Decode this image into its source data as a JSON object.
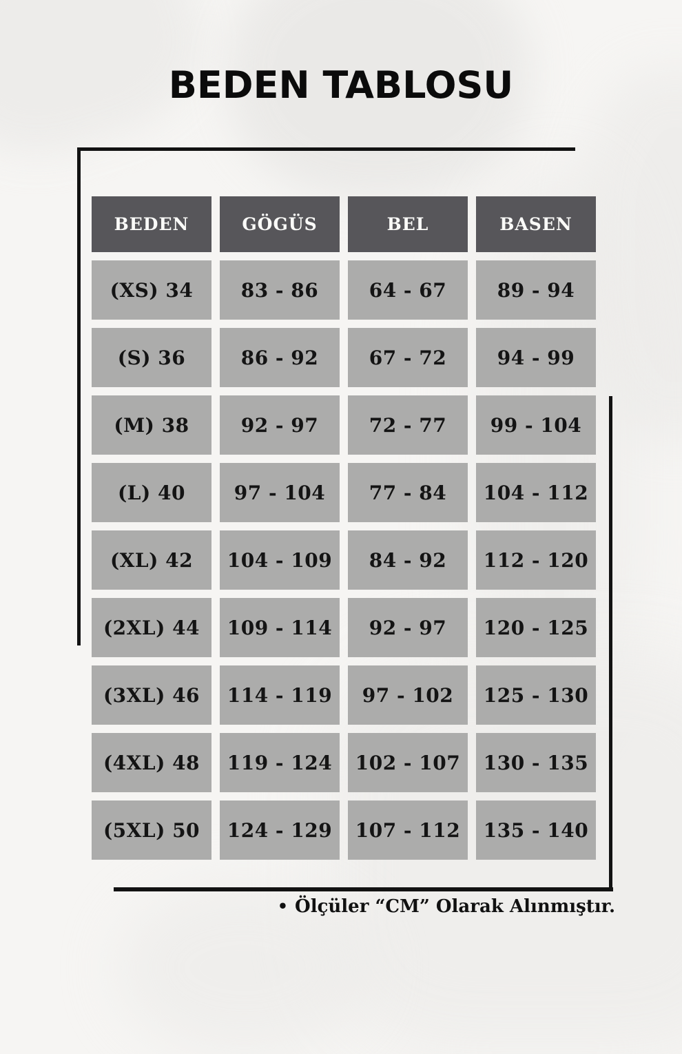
{
  "page": {
    "title": "BEDEN TABLOSU"
  },
  "chart_data": {
    "type": "table",
    "title": "BEDEN TABLOSU",
    "columns": [
      "BEDEN",
      "GÖGÜS",
      "BEL",
      "BASEN"
    ],
    "rows": [
      [
        "(XS) 34",
        "83 - 86",
        "64 - 67",
        "89 - 94"
      ],
      [
        "(S) 36",
        "86 - 92",
        "67 - 72",
        "94 - 99"
      ],
      [
        "(M) 38",
        "92 - 97",
        "72 - 77",
        "99 - 104"
      ],
      [
        "(L) 40",
        "97 - 104",
        "77 - 84",
        "104 - 112"
      ],
      [
        "(XL) 42",
        "104 - 109",
        "84 - 92",
        "112 - 120"
      ],
      [
        "(2XL) 44",
        "109 - 114",
        "92 - 97",
        "120 - 125"
      ],
      [
        "(3XL) 46",
        "114 - 119",
        "97 - 102",
        "125 - 130"
      ],
      [
        "(4XL) 48",
        "119 - 124",
        "102 - 107",
        "130 - 135"
      ],
      [
        "(5XL) 50",
        "124 - 129",
        "107 - 112",
        "135 - 140"
      ]
    ],
    "legend_position": "none",
    "grid": false
  },
  "note": {
    "bullet": "•",
    "text": "Ölçüler “CM” Olarak Alınmıştır."
  },
  "colors": {
    "header_bg": "#57565A",
    "header_text": "#FAFAF8",
    "cell_bg": "#ACACAB",
    "cell_text": "#141414",
    "frame_line": "#121212",
    "page_bg": "#F6F5F3"
  }
}
